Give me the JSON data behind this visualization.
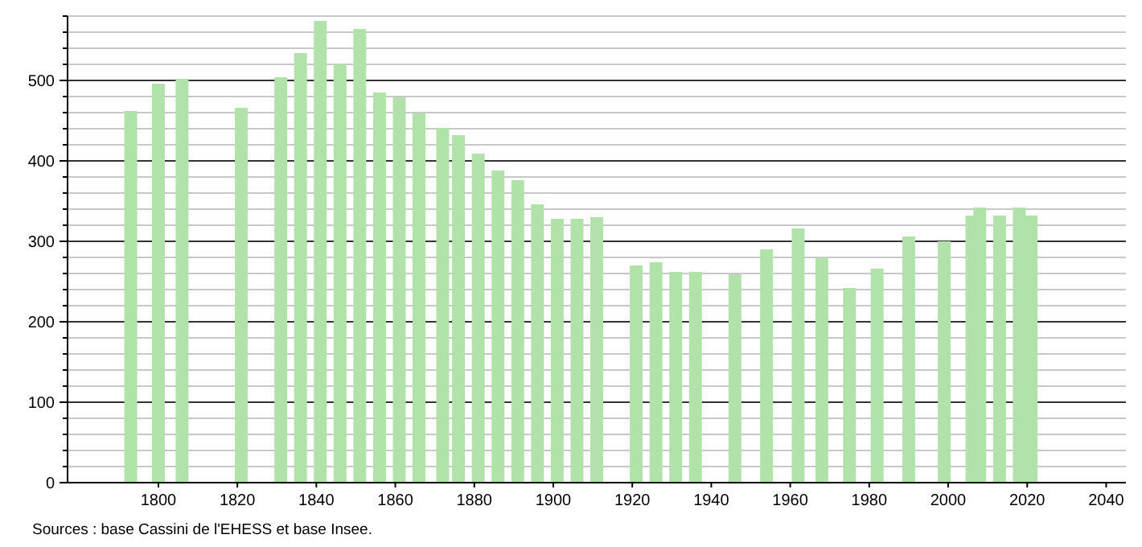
{
  "chart_data": {
    "type": "bar",
    "color": "#b0e2aa",
    "x": [
      1793,
      1800,
      1806,
      1821,
      1831,
      1836,
      1841,
      1846,
      1851,
      1856,
      1861,
      1866,
      1872,
      1876,
      1881,
      1886,
      1891,
      1896,
      1901,
      1906,
      1911,
      1921,
      1926,
      1931,
      1936,
      1946,
      1954,
      1962,
      1968,
      1975,
      1982,
      1990,
      1999,
      2006,
      2008,
      2013,
      2018,
      2021
    ],
    "values": [
      462,
      496,
      502,
      466,
      504,
      534,
      574,
      520,
      564,
      485,
      479,
      459,
      441,
      432,
      409,
      388,
      376,
      346,
      328,
      328,
      330,
      270,
      274,
      262,
      262,
      259,
      290,
      316,
      280,
      242,
      266,
      306,
      300,
      332,
      342,
      332,
      342,
      332
    ],
    "xlim": [
      1777,
      2045
    ],
    "xticks": [
      1800,
      1820,
      1840,
      1860,
      1880,
      1900,
      1920,
      1940,
      1960,
      1980,
      2000,
      2020,
      2040
    ],
    "ylim": [
      0,
      580
    ],
    "yticks": [
      0,
      {
        "value": 20,
        "label": null
      },
      {
        "value": 40,
        "label": null
      },
      {
        "value": 60,
        "label": null
      },
      {
        "value": 80,
        "label": null
      },
      100,
      {
        "value": 120,
        "label": null
      },
      {
        "value": 140,
        "label": null
      },
      {
        "value": 160,
        "label": null
      },
      {
        "value": 180,
        "label": null
      },
      200,
      {
        "value": 220,
        "label": null
      },
      {
        "value": 240,
        "label": null
      },
      {
        "value": 260,
        "label": null
      },
      {
        "value": 280,
        "label": null
      },
      300,
      {
        "value": 320,
        "label": null
      },
      {
        "value": 340,
        "label": null
      },
      {
        "value": 360,
        "label": null
      },
      {
        "value": 380,
        "label": null
      },
      400,
      {
        "value": 420,
        "label": null
      },
      {
        "value": 440,
        "label": null
      },
      {
        "value": 460,
        "label": null
      },
      {
        "value": 480,
        "label": null
      },
      500,
      {
        "value": 520,
        "label": null
      },
      {
        "value": 540,
        "label": null
      },
      {
        "value": 560,
        "label": null
      },
      {
        "value": 580,
        "label": null
      }
    ],
    "grid": "y",
    "annotations": [
      "Sources : base Cassini de l'EHESS et base Insee."
    ]
  }
}
